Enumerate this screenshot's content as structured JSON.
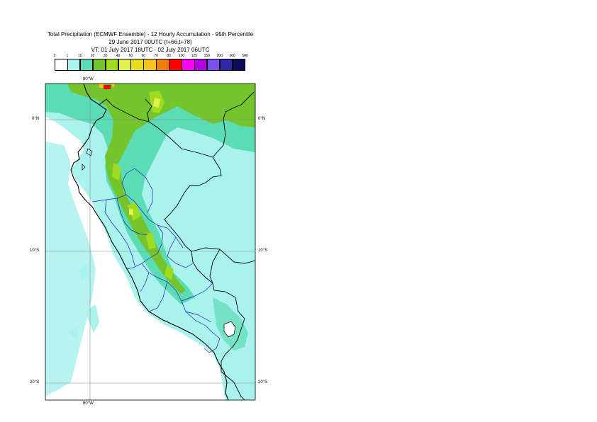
{
  "title": {
    "line1": "Total Precipitation (ECMWF Ensemble) - 12 Hourly Accumulation - 95th Percentile",
    "line2": "29 June 2017 00UTC (t+66,t+78)",
    "line3": "VT: 01 July 2017 18UTC - 02 July 2017 06UTC"
  },
  "legend": {
    "thresholds": [
      "0",
      "1",
      "10",
      "20",
      "30",
      "40",
      "50",
      "60",
      "70",
      "80",
      "100",
      "125",
      "150",
      "200",
      "300",
      "500"
    ],
    "colors": [
      "#ffffff",
      "#aaf2ee",
      "#5cdcb4",
      "#74c42e",
      "#a0dc1e",
      "#e2f050",
      "#e6de1a",
      "#f4c41c",
      "#f47c0a",
      "#ff0000",
      "#ff00ff",
      "#b400e4",
      "#7c50f0",
      "#2c28a8",
      "#0c0c5c"
    ]
  },
  "axes": {
    "lon_top": "80°W",
    "lon_bottom": "80°W",
    "lat_left": [
      "0°N",
      "10°S",
      "20°S"
    ],
    "lat_right": [
      "0°N",
      "10°S",
      "20°S"
    ]
  }
}
